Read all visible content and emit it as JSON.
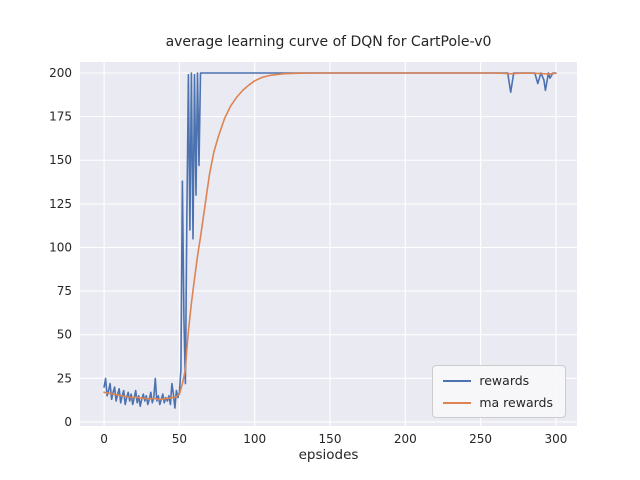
{
  "chart_data": {
    "type": "line",
    "title": "average learning curve of DQN for CartPole-v0",
    "xlabel": "epsiodes",
    "ylabel": "",
    "xlim": [
      -16,
      314
    ],
    "ylim": [
      -2.3,
      206.3
    ],
    "xticks": [
      0,
      50,
      100,
      150,
      200,
      250,
      300
    ],
    "yticks": [
      0,
      25,
      50,
      75,
      100,
      125,
      150,
      175,
      200
    ],
    "grid": true,
    "legend_position": "lower right",
    "plot_background": "#eaeaf2",
    "grid_color": "#ffffff",
    "tick_color": "#262626",
    "series": [
      {
        "name": "rewards",
        "color": "#4c72b0",
        "points": [
          [
            0,
            20
          ],
          [
            1,
            25
          ],
          [
            2,
            15
          ],
          [
            3,
            18
          ],
          [
            4,
            22
          ],
          [
            5,
            13
          ],
          [
            6,
            17
          ],
          [
            7,
            20
          ],
          [
            8,
            12
          ],
          [
            9,
            16
          ],
          [
            10,
            19
          ],
          [
            11,
            11
          ],
          [
            12,
            15
          ],
          [
            13,
            18
          ],
          [
            14,
            10
          ],
          [
            15,
            14
          ],
          [
            16,
            17
          ],
          [
            17,
            12
          ],
          [
            18,
            16
          ],
          [
            19,
            10
          ],
          [
            20,
            14
          ],
          [
            21,
            18
          ],
          [
            22,
            11
          ],
          [
            23,
            15
          ],
          [
            24,
            9
          ],
          [
            25,
            13
          ],
          [
            26,
            16
          ],
          [
            27,
            12
          ],
          [
            28,
            15
          ],
          [
            29,
            10
          ],
          [
            30,
            13
          ],
          [
            31,
            17
          ],
          [
            32,
            11
          ],
          [
            33,
            14
          ],
          [
            34,
            25
          ],
          [
            35,
            12
          ],
          [
            36,
            15
          ],
          [
            37,
            10
          ],
          [
            38,
            13
          ],
          [
            39,
            16
          ],
          [
            40,
            11
          ],
          [
            41,
            14
          ],
          [
            42,
            12
          ],
          [
            43,
            15
          ],
          [
            44,
            10
          ],
          [
            45,
            22
          ],
          [
            46,
            16
          ],
          [
            47,
            8
          ],
          [
            48,
            18
          ],
          [
            49,
            14
          ],
          [
            50,
            17
          ],
          [
            51,
            30
          ],
          [
            52,
            138
          ],
          [
            53,
            60
          ],
          [
            54,
            22
          ],
          [
            55,
            120
          ],
          [
            56,
            199
          ],
          [
            57,
            110
          ],
          [
            58,
            200
          ],
          [
            59,
            105
          ],
          [
            60,
            199
          ],
          [
            61,
            130
          ],
          [
            62,
            200
          ],
          [
            63,
            147
          ],
          [
            64,
            200
          ],
          [
            66,
            200
          ],
          [
            70,
            200
          ],
          [
            80,
            200
          ],
          [
            90,
            200
          ],
          [
            100,
            200
          ],
          [
            120,
            200
          ],
          [
            140,
            200
          ],
          [
            160,
            200
          ],
          [
            180,
            200
          ],
          [
            200,
            200
          ],
          [
            220,
            200
          ],
          [
            240,
            200
          ],
          [
            260,
            200
          ],
          [
            268,
            200
          ],
          [
            270,
            189
          ],
          [
            272,
            200
          ],
          [
            280,
            200
          ],
          [
            286,
            200
          ],
          [
            288,
            194
          ],
          [
            290,
            200
          ],
          [
            292,
            196
          ],
          [
            293,
            190
          ],
          [
            295,
            200
          ],
          [
            296,
            197
          ],
          [
            298,
            200
          ],
          [
            300,
            200
          ]
        ]
      },
      {
        "name": "ma rewards",
        "color": "#dd8452",
        "points": [
          [
            0,
            17
          ],
          [
            3,
            16.5
          ],
          [
            6,
            16
          ],
          [
            9,
            15.5
          ],
          [
            12,
            15
          ],
          [
            15,
            14.5
          ],
          [
            18,
            14
          ],
          [
            21,
            14.2
          ],
          [
            24,
            13.8
          ],
          [
            27,
            13.5
          ],
          [
            30,
            13.2
          ],
          [
            33,
            13.5
          ],
          [
            36,
            13
          ],
          [
            39,
            13.2
          ],
          [
            42,
            13.5
          ],
          [
            45,
            13.8
          ],
          [
            48,
            14.5
          ],
          [
            50,
            16
          ],
          [
            52,
            22
          ],
          [
            54,
            30
          ],
          [
            55,
            42
          ],
          [
            56,
            52
          ],
          [
            58,
            68
          ],
          [
            60,
            82
          ],
          [
            62,
            95
          ],
          [
            64,
            106
          ],
          [
            66,
            118
          ],
          [
            68,
            130
          ],
          [
            70,
            142
          ],
          [
            73,
            155
          ],
          [
            76,
            164
          ],
          [
            80,
            174
          ],
          [
            84,
            181
          ],
          [
            88,
            186
          ],
          [
            92,
            190
          ],
          [
            96,
            193
          ],
          [
            100,
            195.5
          ],
          [
            105,
            197.5
          ],
          [
            110,
            198.6
          ],
          [
            115,
            199.2
          ],
          [
            120,
            199.6
          ],
          [
            130,
            199.9
          ],
          [
            140,
            200
          ],
          [
            160,
            200
          ],
          [
            180,
            200
          ],
          [
            200,
            200
          ],
          [
            220,
            200
          ],
          [
            240,
            200
          ],
          [
            260,
            200
          ],
          [
            270,
            199.6
          ],
          [
            280,
            200
          ],
          [
            290,
            199.7
          ],
          [
            295,
            199.5
          ],
          [
            300,
            199.8
          ]
        ]
      }
    ]
  }
}
